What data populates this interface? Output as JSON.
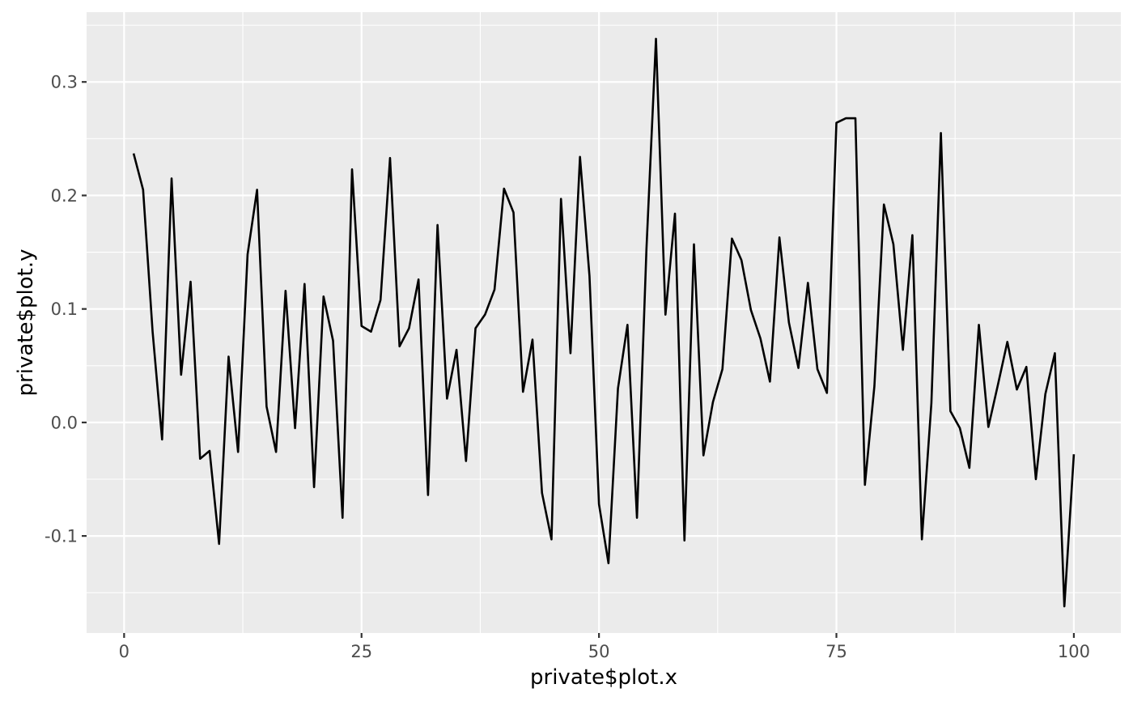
{
  "chart_data": {
    "type": "line",
    "title": "",
    "xlabel": "private$plot.x",
    "ylabel": "private$plot.y",
    "xlim": [
      -3.95,
      104.95
    ],
    "ylim": [
      -0.1855,
      0.3615
    ],
    "x_ticks": [
      0,
      25,
      50,
      75,
      100
    ],
    "x_tick_labels": [
      "0",
      "25",
      "50",
      "75",
      "100"
    ],
    "y_ticks": [
      -0.1,
      0.0,
      0.1,
      0.2,
      0.3
    ],
    "y_tick_labels": [
      "-0.1",
      "0.0",
      "0.1",
      "0.2",
      "0.3"
    ],
    "grid": true,
    "legend": "none",
    "colors": {
      "panel": "#EBEBEB",
      "grid": "#FFFFFF",
      "line": "#000000"
    },
    "x": [
      1,
      2,
      3,
      4,
      5,
      6,
      7,
      8,
      9,
      10,
      11,
      12,
      13,
      14,
      15,
      16,
      17,
      18,
      19,
      20,
      21,
      22,
      23,
      24,
      25,
      26,
      27,
      28,
      29,
      30,
      31,
      32,
      33,
      34,
      35,
      36,
      37,
      38,
      39,
      40,
      41,
      42,
      43,
      44,
      45,
      46,
      47,
      48,
      49,
      50,
      51,
      52,
      53,
      54,
      55,
      56,
      57,
      58,
      59,
      60,
      61,
      62,
      63,
      64,
      65,
      66,
      67,
      68,
      69,
      70,
      71,
      72,
      73,
      74,
      75,
      76,
      77,
      78,
      79,
      80,
      81,
      82,
      83,
      84,
      85,
      86,
      87,
      88,
      89,
      90,
      91,
      92,
      93,
      94,
      95,
      96,
      97,
      98,
      99,
      100
    ],
    "series": [
      {
        "values": [
          0.237,
          0.205,
          0.08,
          -0.015,
          0.215,
          0.042,
          0.124,
          -0.032,
          -0.025,
          -0.107,
          0.058,
          -0.026,
          0.148,
          0.205,
          0.014,
          -0.026,
          0.116,
          -0.005,
          0.122,
          -0.057,
          0.111,
          0.072,
          -0.084,
          0.223,
          0.085,
          0.08,
          0.108,
          0.233,
          0.067,
          0.083,
          0.126,
          -0.064,
          0.174,
          0.021,
          0.064,
          -0.034,
          0.083,
          0.095,
          0.117,
          0.206,
          0.185,
          0.027,
          0.073,
          -0.062,
          -0.103,
          0.197,
          0.061,
          0.234,
          0.129,
          -0.072,
          -0.124,
          0.03,
          0.086,
          -0.084,
          0.153,
          0.338,
          0.095,
          0.184,
          -0.104,
          0.157,
          -0.029,
          0.018,
          0.047,
          0.162,
          0.143,
          0.099,
          0.074,
          0.036,
          0.163,
          0.088,
          0.048,
          0.123,
          0.047,
          0.026,
          0.264,
          0.268,
          0.268,
          -0.055,
          0.032,
          0.192,
          0.157,
          0.064,
          0.165,
          -0.103,
          0.017,
          0.255,
          0.01,
          -0.005,
          -0.04,
          0.086,
          -0.004,
          0.033,
          0.071,
          0.029,
          0.049,
          -0.05,
          0.025,
          0.061,
          -0.162,
          -0.028
        ]
      }
    ]
  }
}
